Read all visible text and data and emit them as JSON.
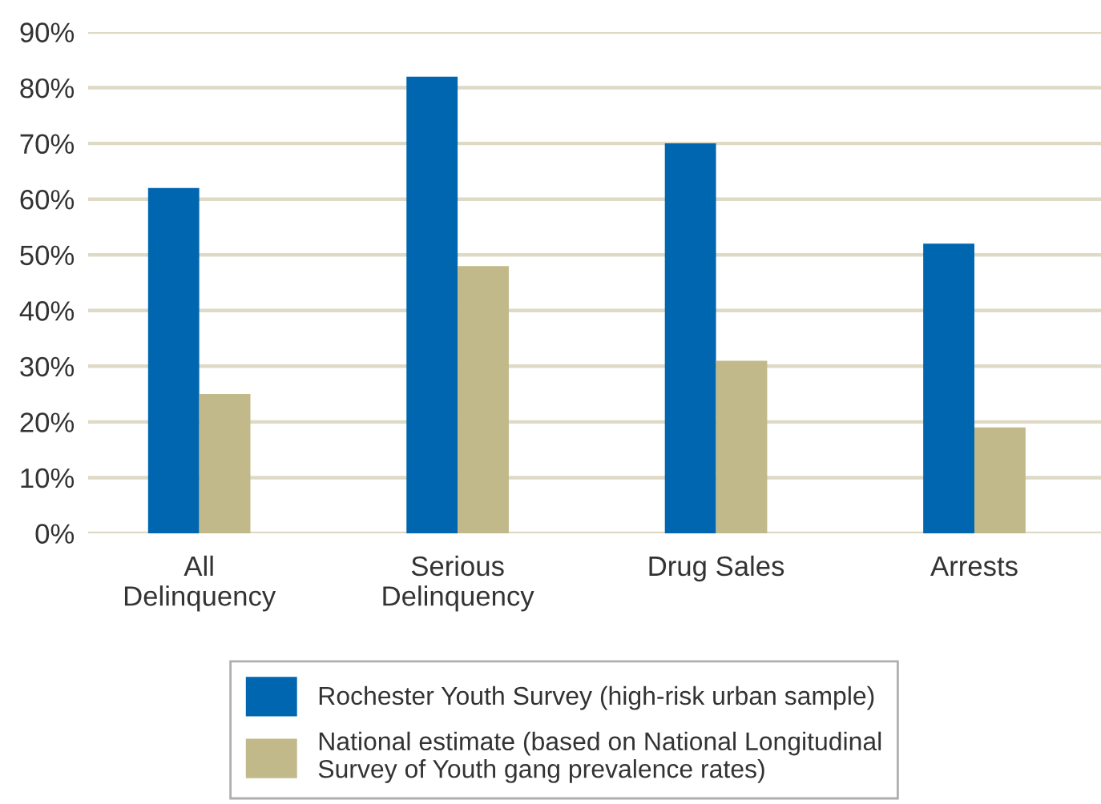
{
  "chart_data": {
    "type": "bar",
    "categories": [
      "All\nDelinquency",
      "Serious\nDelinquency",
      "Drug Sales",
      "Arrests"
    ],
    "series": [
      {
        "name": "Rochester Youth Survey (high-risk urban sample)",
        "color": "#0066b0",
        "values": [
          62,
          82,
          70,
          52
        ]
      },
      {
        "name": "National estimate (based on National Longitudinal\nSurvey of Youth gang prevalence rates)",
        "color": "#c1b98a",
        "values": [
          25,
          48,
          31,
          19
        ]
      }
    ],
    "ylim": [
      0,
      90
    ],
    "yticks": [
      {
        "value": 0,
        "label": "0%"
      },
      {
        "value": 10,
        "label": "10%"
      },
      {
        "value": 20,
        "label": "20%"
      },
      {
        "value": 30,
        "label": "30%"
      },
      {
        "value": 40,
        "label": "40%"
      },
      {
        "value": 50,
        "label": "50%"
      },
      {
        "value": 60,
        "label": "60%"
      },
      {
        "value": 70,
        "label": "70%"
      },
      {
        "value": 80,
        "label": "80%"
      },
      {
        "value": 90,
        "label": "90%"
      }
    ],
    "grid": "y",
    "legend": "bottom"
  }
}
